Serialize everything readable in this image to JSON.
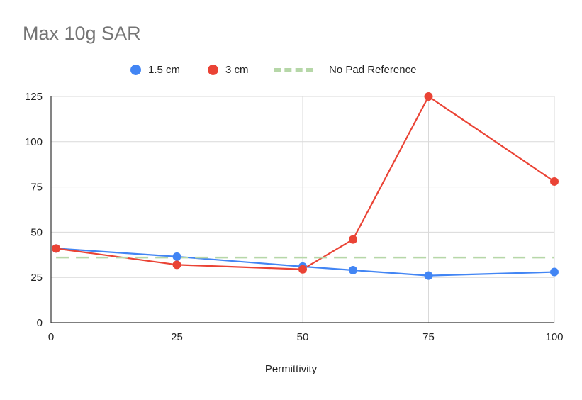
{
  "chart_data": {
    "type": "line",
    "title": "Max 10g SAR",
    "xlabel": "Permittivity",
    "ylabel": "",
    "xlim": [
      0,
      100
    ],
    "ylim": [
      0,
      125
    ],
    "xticks": [
      0,
      25,
      50,
      75,
      100
    ],
    "yticks": [
      0,
      25,
      50,
      75,
      100,
      125
    ],
    "legend_position": "top",
    "grid": true,
    "series": [
      {
        "name": "1.5 cm",
        "color": "#4285f4",
        "marker": "circle",
        "x": [
          1,
          25,
          50,
          60,
          75,
          100
        ],
        "y": [
          41,
          36.5,
          31,
          29,
          26,
          28
        ]
      },
      {
        "name": "3 cm",
        "color": "#ea4335",
        "marker": "circle",
        "x": [
          1,
          25,
          50,
          60,
          75,
          100
        ],
        "y": [
          41,
          32,
          29.5,
          46,
          125,
          78
        ]
      },
      {
        "name": "No Pad Reference",
        "color": "#b6d7a8",
        "marker": "none",
        "dashed": true,
        "x": [
          1,
          100
        ],
        "y": [
          36,
          36
        ]
      }
    ]
  }
}
